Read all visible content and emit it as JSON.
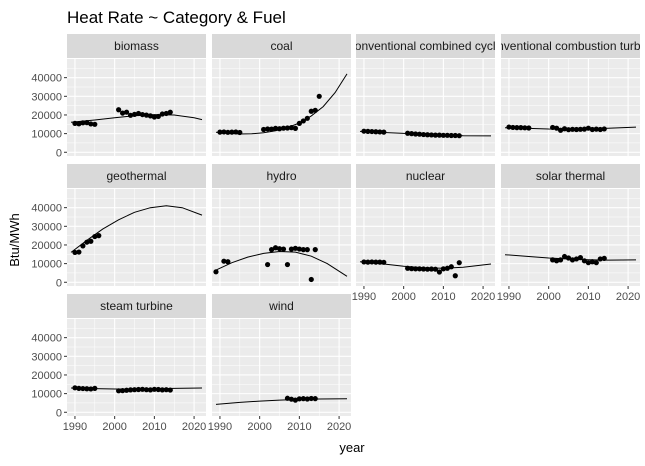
{
  "chart_data": {
    "type": "scatter",
    "title": "Heat Rate ~ Category & Fuel",
    "xlabel": "year",
    "ylabel": "Btu/MWh",
    "xlim": [
      1988,
      2023
    ],
    "ylim": [
      -2000,
      50000
    ],
    "x_ticks": [
      1990,
      2000,
      2010,
      2020
    ],
    "y_ticks": [
      0,
      10000,
      20000,
      30000,
      40000
    ],
    "x_tick_labels": [
      "1990",
      "2000",
      "2010",
      "2020"
    ],
    "y_tick_labels": [
      "0",
      "10000",
      "20000",
      "30000",
      "40000"
    ],
    "grid": true,
    "colors": {
      "panel_background": "#ebebeb",
      "grid_major": "#ffffff",
      "strip_background": "#d9d9d9",
      "point": "#000000",
      "line": "#000000"
    },
    "facets": [
      {
        "label": "biomass",
        "points": [
          [
            1990,
            15500
          ],
          [
            1991,
            15300
          ],
          [
            1992,
            15800
          ],
          [
            1993,
            15900
          ],
          [
            1994,
            15200
          ],
          [
            1995,
            15000
          ],
          [
            2001,
            22800
          ],
          [
            2002,
            21000
          ],
          [
            2003,
            21500
          ],
          [
            2004,
            19800
          ],
          [
            2005,
            20300
          ],
          [
            2006,
            20800
          ],
          [
            2007,
            20200
          ],
          [
            2008,
            19900
          ],
          [
            2009,
            19500
          ],
          [
            2010,
            18900
          ],
          [
            2011,
            19200
          ],
          [
            2012,
            20500
          ],
          [
            2013,
            20800
          ],
          [
            2014,
            21500
          ]
        ],
        "fit": [
          [
            1989,
            16100
          ],
          [
            1995,
            17300
          ],
          [
            2000,
            18500
          ],
          [
            2005,
            19600
          ],
          [
            2010,
            20200
          ],
          [
            2015,
            20000
          ],
          [
            2020,
            18500
          ],
          [
            2022,
            17500
          ]
        ]
      },
      {
        "label": "coal",
        "points": [
          [
            1990,
            10800
          ],
          [
            1991,
            10900
          ],
          [
            1992,
            10700
          ],
          [
            1993,
            10800
          ],
          [
            1994,
            10900
          ],
          [
            1995,
            10600
          ],
          [
            2001,
            12200
          ],
          [
            2002,
            12500
          ],
          [
            2003,
            12400
          ],
          [
            2004,
            12800
          ],
          [
            2005,
            12600
          ],
          [
            2006,
            12900
          ],
          [
            2007,
            13000
          ],
          [
            2008,
            13200
          ],
          [
            2009,
            12800
          ],
          [
            2010,
            15500
          ],
          [
            2011,
            16800
          ],
          [
            2012,
            18200
          ],
          [
            2013,
            22000
          ],
          [
            2014,
            22500
          ],
          [
            2015,
            30000
          ]
        ],
        "fit": [
          [
            1989,
            10700
          ],
          [
            1992,
            10200
          ],
          [
            1995,
            9800
          ],
          [
            1998,
            9900
          ],
          [
            2001,
            10500
          ],
          [
            2004,
            11500
          ],
          [
            2007,
            13200
          ],
          [
            2010,
            15700
          ],
          [
            2013,
            19500
          ],
          [
            2016,
            24500
          ],
          [
            2019,
            32000
          ],
          [
            2022,
            42000
          ]
        ]
      },
      {
        "label": "conventional combined cycle",
        "points": [
          [
            1990,
            11300
          ],
          [
            1991,
            11200
          ],
          [
            1992,
            11100
          ],
          [
            1993,
            11000
          ],
          [
            1994,
            10900
          ],
          [
            1995,
            10800
          ],
          [
            2001,
            10200
          ],
          [
            2002,
            10000
          ],
          [
            2003,
            9800
          ],
          [
            2004,
            9700
          ],
          [
            2005,
            9500
          ],
          [
            2006,
            9400
          ],
          [
            2007,
            9300
          ],
          [
            2008,
            9200
          ],
          [
            2009,
            9200
          ],
          [
            2010,
            9100
          ],
          [
            2011,
            9100
          ],
          [
            2012,
            9000
          ],
          [
            2013,
            9000
          ],
          [
            2014,
            8900
          ]
        ],
        "fit": [
          [
            1989,
            11200
          ],
          [
            1995,
            10600
          ],
          [
            2000,
            10100
          ],
          [
            2005,
            9600
          ],
          [
            2010,
            9200
          ],
          [
            2015,
            8900
          ],
          [
            2022,
            8800
          ]
        ]
      },
      {
        "label": "conventional combustion turbine",
        "points": [
          [
            1990,
            13500
          ],
          [
            1991,
            13300
          ],
          [
            1992,
            13200
          ],
          [
            1993,
            13200
          ],
          [
            1994,
            13100
          ],
          [
            1995,
            13000
          ],
          [
            2001,
            13300
          ],
          [
            2002,
            12900
          ],
          [
            2003,
            11800
          ],
          [
            2004,
            12600
          ],
          [
            2005,
            12100
          ],
          [
            2006,
            12300
          ],
          [
            2007,
            12200
          ],
          [
            2008,
            12300
          ],
          [
            2009,
            12400
          ],
          [
            2010,
            12900
          ],
          [
            2011,
            12200
          ],
          [
            2012,
            12400
          ],
          [
            2013,
            12200
          ],
          [
            2014,
            12500
          ]
        ],
        "fit": [
          [
            1989,
            13100
          ],
          [
            1995,
            12800
          ],
          [
            2000,
            12500
          ],
          [
            2005,
            12400
          ],
          [
            2010,
            12500
          ],
          [
            2015,
            12900
          ],
          [
            2022,
            13500
          ]
        ]
      },
      {
        "label": "geothermal",
        "points": [
          [
            1990,
            16000
          ],
          [
            1991,
            16200
          ],
          [
            1992,
            19500
          ],
          [
            1993,
            21500
          ],
          [
            1994,
            22000
          ],
          [
            1995,
            24500
          ],
          [
            1996,
            25000
          ]
        ],
        "fit": [
          [
            1989,
            16000
          ],
          [
            1993,
            22500
          ],
          [
            1997,
            28500
          ],
          [
            2001,
            33500
          ],
          [
            2005,
            37500
          ],
          [
            2009,
            40000
          ],
          [
            2013,
            41000
          ],
          [
            2017,
            40000
          ],
          [
            2022,
            36000
          ]
        ]
      },
      {
        "label": "hydro",
        "points": [
          [
            1989,
            5600
          ],
          [
            1991,
            11300
          ],
          [
            1992,
            11000
          ],
          [
            2002,
            9500
          ],
          [
            2003,
            17500
          ],
          [
            2004,
            18500
          ],
          [
            2005,
            18000
          ],
          [
            2006,
            17800
          ],
          [
            2007,
            9500
          ],
          [
            2008,
            17800
          ],
          [
            2009,
            18200
          ],
          [
            2010,
            17800
          ],
          [
            2011,
            17500
          ],
          [
            2012,
            17500
          ],
          [
            2013,
            1500
          ],
          [
            2014,
            17500
          ]
        ],
        "fit": [
          [
            1989,
            6500
          ],
          [
            1993,
            10500
          ],
          [
            1997,
            13500
          ],
          [
            2001,
            15500
          ],
          [
            2005,
            16500
          ],
          [
            2009,
            16200
          ],
          [
            2013,
            14000
          ],
          [
            2017,
            10000
          ],
          [
            2022,
            3200
          ]
        ]
      },
      {
        "label": "nuclear",
        "points": [
          [
            1990,
            10900
          ],
          [
            1991,
            10800
          ],
          [
            1992,
            10900
          ],
          [
            1993,
            10800
          ],
          [
            1994,
            10800
          ],
          [
            1995,
            10700
          ],
          [
            2001,
            7500
          ],
          [
            2002,
            7300
          ],
          [
            2003,
            7200
          ],
          [
            2004,
            7200
          ],
          [
            2005,
            7100
          ],
          [
            2006,
            7000
          ],
          [
            2007,
            7100
          ],
          [
            2008,
            7000
          ],
          [
            2009,
            5500
          ],
          [
            2010,
            7200
          ],
          [
            2011,
            7500
          ],
          [
            2012,
            8300
          ],
          [
            2013,
            3500
          ],
          [
            2014,
            10500
          ]
        ],
        "fit": [
          [
            1989,
            11000
          ],
          [
            1995,
            9800
          ],
          [
            2000,
            8600
          ],
          [
            2005,
            7800
          ],
          [
            2010,
            7500
          ],
          [
            2015,
            8000
          ],
          [
            2022,
            9800
          ]
        ]
      },
      {
        "label": "solar thermal",
        "points": [
          [
            2001,
            12000
          ],
          [
            2002,
            11500
          ],
          [
            2003,
            12000
          ],
          [
            2004,
            13800
          ],
          [
            2005,
            13000
          ],
          [
            2006,
            12000
          ],
          [
            2007,
            12500
          ],
          [
            2008,
            13200
          ],
          [
            2009,
            11500
          ],
          [
            2010,
            10500
          ],
          [
            2011,
            11000
          ],
          [
            2012,
            10500
          ],
          [
            2013,
            12500
          ],
          [
            2014,
            12800
          ]
        ],
        "fit": [
          [
            1989,
            14800
          ],
          [
            1995,
            13800
          ],
          [
            2000,
            13000
          ],
          [
            2005,
            12500
          ],
          [
            2010,
            12100
          ],
          [
            2015,
            11900
          ],
          [
            2022,
            12000
          ]
        ]
      },
      {
        "label": "steam turbine",
        "points": [
          [
            1990,
            13100
          ],
          [
            1991,
            12800
          ],
          [
            1992,
            12700
          ],
          [
            1993,
            12600
          ],
          [
            1994,
            12500
          ],
          [
            1995,
            12800
          ],
          [
            2001,
            11500
          ],
          [
            2002,
            11600
          ],
          [
            2003,
            11800
          ],
          [
            2004,
            12000
          ],
          [
            2005,
            12100
          ],
          [
            2006,
            12200
          ],
          [
            2007,
            12300
          ],
          [
            2008,
            12100
          ],
          [
            2009,
            12000
          ],
          [
            2010,
            12300
          ],
          [
            2011,
            12200
          ],
          [
            2012,
            12000
          ],
          [
            2013,
            12100
          ],
          [
            2014,
            11900
          ]
        ],
        "fit": [
          [
            1989,
            13000
          ],
          [
            1995,
            12700
          ],
          [
            2000,
            12500
          ],
          [
            2005,
            12500
          ],
          [
            2010,
            12600
          ],
          [
            2015,
            12800
          ],
          [
            2022,
            13000
          ]
        ]
      },
      {
        "label": "wind",
        "points": [
          [
            2007,
            7500
          ],
          [
            2008,
            7000
          ],
          [
            2009,
            6500
          ],
          [
            2010,
            7200
          ],
          [
            2011,
            7300
          ],
          [
            2012,
            7100
          ],
          [
            2013,
            7400
          ],
          [
            2014,
            7300
          ]
        ],
        "fit": [
          [
            1989,
            4200
          ],
          [
            1995,
            5300
          ],
          [
            2000,
            6000
          ],
          [
            2005,
            6500
          ],
          [
            2010,
            6900
          ],
          [
            2015,
            7100
          ],
          [
            2022,
            7200
          ]
        ]
      }
    ]
  }
}
